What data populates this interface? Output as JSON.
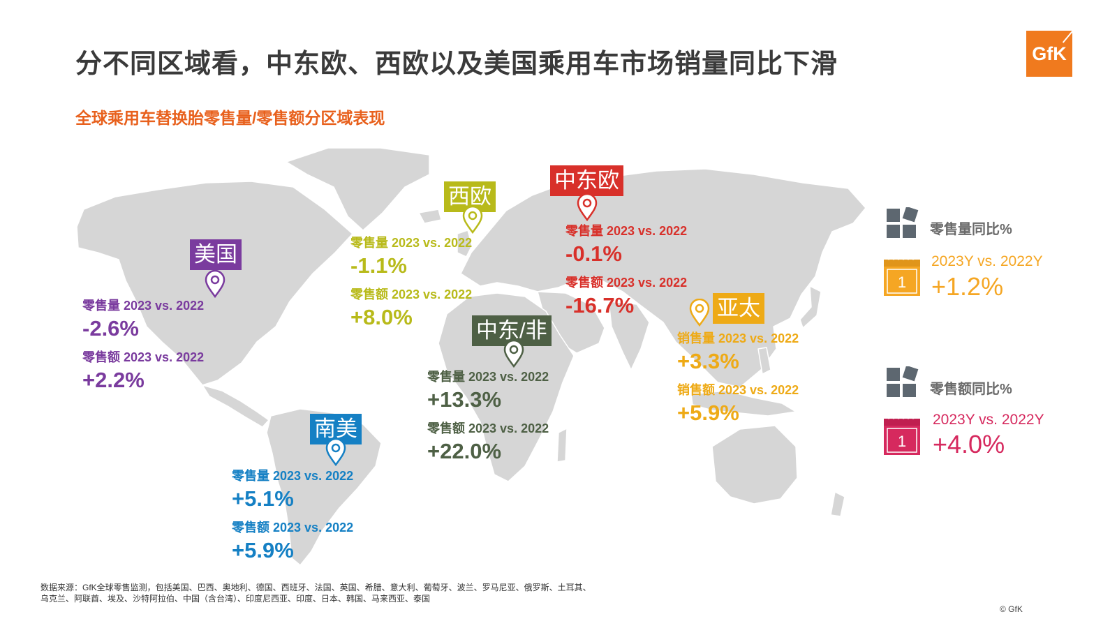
{
  "title": "分不同区域看，中东欧、西欧以及美国乘用车市场销量同比下滑",
  "subtitle": "全球乘用车替换胎零售量/零售额分区域表现",
  "logo_text": "GfK",
  "regions": {
    "usa": {
      "name": "美国",
      "color": "#7a3b9e",
      "stat1_label": "零售量 2023 vs. 2022",
      "stat1_value": "-2.6%",
      "stat2_label": "零售额 2023 vs. 2022",
      "stat2_value": "+2.2%"
    },
    "western_europe": {
      "name": "西欧",
      "color": "#b8ba1a",
      "stat1_label": "零售量 2023 vs. 2022",
      "stat1_value": "-1.1%",
      "stat2_label": "零售额 2023 vs. 2022",
      "stat2_value": "+8.0%"
    },
    "central_eastern_europe": {
      "name": "中东欧",
      "color": "#d8302a",
      "stat1_label": "零售量 2023 vs. 2022",
      "stat1_value": "-0.1%",
      "stat2_label": "零售额 2023 vs. 2022",
      "stat2_value": "-16.7%"
    },
    "middle_east_africa": {
      "name": "中东/非",
      "color": "#4e6045",
      "stat1_label": "零售量 2023 vs. 2022",
      "stat1_value": "+13.3%",
      "stat2_label": "零售额 2023 vs. 2022",
      "stat2_value": "+22.0%"
    },
    "asia_pacific": {
      "name": "亚太",
      "color": "#eeaa16",
      "stat1_label": "销售量 2023 vs. 2022",
      "stat1_value": "+3.3%",
      "stat2_label": "销售额 2023 vs. 2022",
      "stat2_value": "+5.9%"
    },
    "south_america": {
      "name": "南美",
      "color": "#1580c4",
      "stat1_label": "零售量 2023 vs. 2022",
      "stat1_value": "+5.1%",
      "stat2_label": "零售额 2023 vs. 2022",
      "stat2_value": "+5.9%"
    }
  },
  "legend": {
    "volume": {
      "title": "零售量同比%",
      "calendar_day": "1",
      "period": "2023Y vs. 2022Y",
      "value": "+1.2%",
      "color": "#f5a623"
    },
    "value": {
      "title": "零售额同比%",
      "calendar_day": "1",
      "period": "2023Y vs. 2022Y",
      "value": "+4.0%",
      "color": "#d6295e"
    }
  },
  "source": "数据来源：GfK全球零售监测，包括美国、巴西、奥地利、德国、西班牙、法国、英国、希腊、意大利、葡萄牙、波兰、罗马尼亚、俄罗斯、土耳其、乌克兰、阿联酋、埃及、沙特阿拉伯、中国（含台湾）、印度尼西亚、印度、日本、韩国、马来西亚、泰国",
  "copyright": "© GfK"
}
